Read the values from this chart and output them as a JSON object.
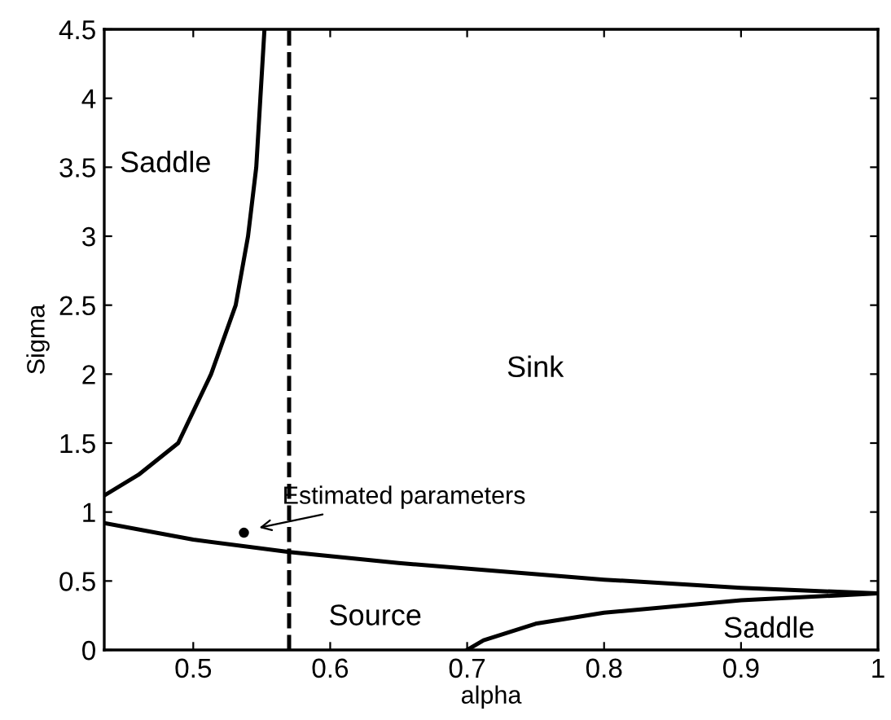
{
  "chart_data": {
    "type": "line",
    "xlabel": "alpha",
    "ylabel": "Sigma",
    "xlim": [
      0.435,
      1
    ],
    "ylim": [
      0,
      4.5
    ],
    "xticks": [
      0.5,
      0.6,
      0.7,
      0.8,
      0.9,
      1
    ],
    "yticks": [
      0,
      0.5,
      1,
      1.5,
      2,
      2.5,
      3,
      3.5,
      4,
      4.5
    ],
    "grid": false,
    "series": [
      {
        "color": "#000000",
        "line_style": "solid",
        "x": [
          0.435,
          0.46,
          0.489,
          0.513,
          0.531,
          0.54,
          0.546,
          0.549,
          0.552
        ],
        "values": [
          1.12,
          1.27,
          1.5,
          2,
          2.5,
          3,
          3.5,
          4,
          4.5
        ]
      },
      {
        "color": "#000000",
        "line_style": "solid",
        "x": [
          0.435,
          0.5,
          0.57,
          0.65,
          0.712,
          0.8,
          0.9,
          1
        ],
        "values": [
          0.92,
          0.8,
          0.71,
          0.63,
          0.58,
          0.51,
          0.45,
          0.41
        ]
      },
      {
        "color": "#000000",
        "line_style": "solid",
        "x": [
          0.7,
          0.712,
          0.75,
          0.8,
          0.9,
          1
        ],
        "values": [
          0,
          0.07,
          0.19,
          0.27,
          0.36,
          0.41
        ]
      },
      {
        "type": "scatter",
        "marker": "circle",
        "color": "#000000",
        "x": [
          0.537
        ],
        "values": [
          0.85
        ]
      }
    ],
    "ref_lines": [
      {
        "axis": "x",
        "value": 0.57,
        "color": "#000000",
        "line_style": "dashed"
      }
    ],
    "annotations": [
      "Saddle",
      "Sink",
      "Source",
      "Saddle",
      {
        "text": "Estimated parameters",
        "x": 0.545,
        "y": 0.88
      }
    ]
  }
}
